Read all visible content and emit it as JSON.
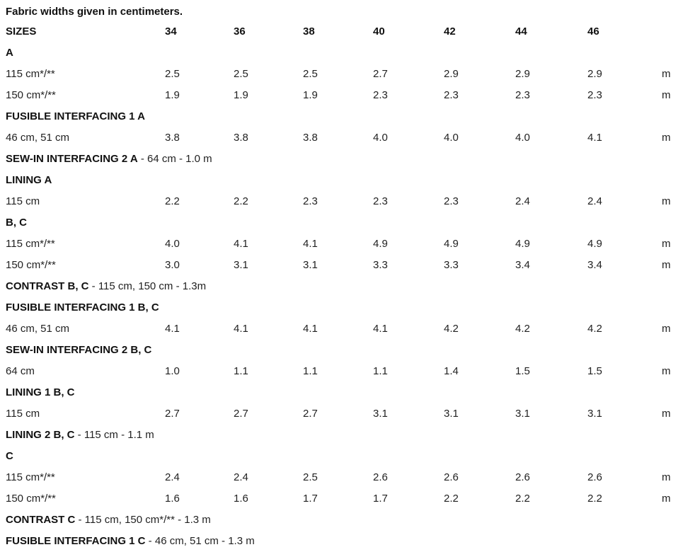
{
  "note": "Fabric widths given in centimeters.",
  "header": {
    "label": "SIZES",
    "sizes": [
      "34",
      "36",
      "38",
      "40",
      "42",
      "44",
      "46"
    ]
  },
  "rows": [
    {
      "type": "heading",
      "label": "A"
    },
    {
      "type": "data",
      "label": "115 cm*/**",
      "values": [
        "2.5",
        "2.5",
        "2.5",
        "2.7",
        "2.9",
        "2.9",
        "2.9"
      ],
      "unit": "m"
    },
    {
      "type": "data",
      "label": "150 cm*/**",
      "values": [
        "1.9",
        "1.9",
        "1.9",
        "2.3",
        "2.3",
        "2.3",
        "2.3"
      ],
      "unit": "m"
    },
    {
      "type": "heading",
      "label": "FUSIBLE INTERFACING 1 A"
    },
    {
      "type": "data",
      "label": "46 cm, 51 cm",
      "values": [
        "3.8",
        "3.8",
        "3.8",
        "4.0",
        "4.0",
        "4.0",
        "4.1"
      ],
      "unit": "m"
    },
    {
      "type": "heading",
      "label": "SEW-IN INTERFACING 2 A",
      "extra": " - 64 cm - 1.0 m"
    },
    {
      "type": "heading",
      "label": "LINING A"
    },
    {
      "type": "data",
      "label": "115 cm",
      "values": [
        "2.2",
        "2.2",
        "2.3",
        "2.3",
        "2.3",
        "2.4",
        "2.4"
      ],
      "unit": "m"
    },
    {
      "type": "heading",
      "label": "B, C"
    },
    {
      "type": "data",
      "label": "115 cm*/**",
      "values": [
        "4.0",
        "4.1",
        "4.1",
        "4.9",
        "4.9",
        "4.9",
        "4.9"
      ],
      "unit": "m"
    },
    {
      "type": "data",
      "label": "150 cm*/**",
      "values": [
        "3.0",
        "3.1",
        "3.1",
        "3.3",
        "3.3",
        "3.4",
        "3.4"
      ],
      "unit": "m"
    },
    {
      "type": "heading",
      "label": "CONTRAST B, C",
      "extra": " - 115 cm, 150 cm - 1.3m"
    },
    {
      "type": "heading",
      "label": "FUSIBLE INTERFACING 1 B, C"
    },
    {
      "type": "data",
      "label": "46 cm, 51 cm",
      "values": [
        "4.1",
        "4.1",
        "4.1",
        "4.1",
        "4.2",
        "4.2",
        "4.2"
      ],
      "unit": "m"
    },
    {
      "type": "heading",
      "label": "SEW-IN INTERFACING 2 B, C"
    },
    {
      "type": "data",
      "label": "64 cm",
      "values": [
        "1.0",
        "1.1",
        "1.1",
        "1.1",
        "1.4",
        "1.5",
        "1.5"
      ],
      "unit": "m"
    },
    {
      "type": "heading",
      "label": "LINING 1 B, C"
    },
    {
      "type": "data",
      "label": "115 cm",
      "values": [
        "2.7",
        "2.7",
        "2.7",
        "3.1",
        "3.1",
        "3.1",
        "3.1"
      ],
      "unit": "m"
    },
    {
      "type": "heading",
      "label": "LINING 2 B, C",
      "extra": " - 115 cm - 1.1 m"
    },
    {
      "type": "heading",
      "label": "C"
    },
    {
      "type": "data",
      "label": "115 cm*/**",
      "values": [
        "2.4",
        "2.4",
        "2.5",
        "2.6",
        "2.6",
        "2.6",
        "2.6"
      ],
      "unit": "m"
    },
    {
      "type": "data",
      "label": "150 cm*/**",
      "values": [
        "1.6",
        "1.6",
        "1.7",
        "1.7",
        "2.2",
        "2.2",
        "2.2"
      ],
      "unit": "m"
    },
    {
      "type": "heading",
      "label": "CONTRAST C",
      "extra": " - 115 cm, 150 cm*/** - 1.3 m"
    },
    {
      "type": "heading",
      "label": "FUSIBLE INTERFACING 1 C",
      "extra": " - 46 cm, 51 cm - 1.3 m"
    }
  ]
}
